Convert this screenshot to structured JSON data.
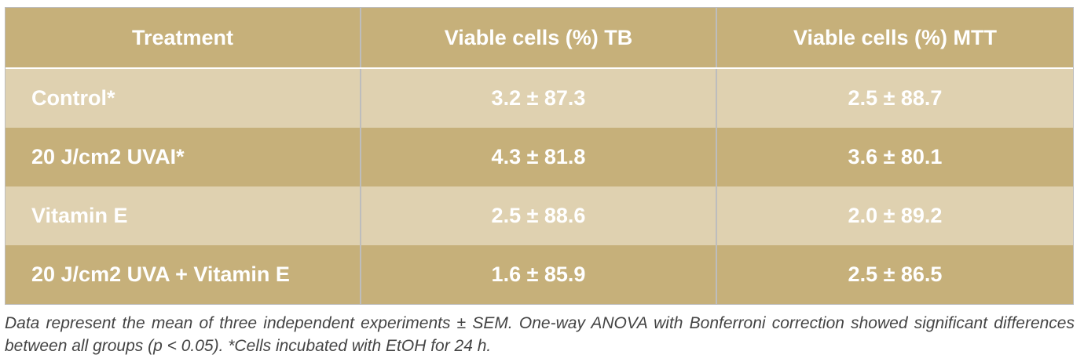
{
  "table": {
    "headers": [
      "Treatment",
      "Viable cells (%) TB",
      "Viable cells (%) MTT"
    ],
    "rows": [
      {
        "treatment": "Control*",
        "tb": "3.2 ± 87.3",
        "mtt": "2.5 ± 88.7"
      },
      {
        "treatment": "20 J/cm2 UVAI*",
        "tb": "4.3 ± 81.8",
        "mtt": "3.6 ± 80.1"
      },
      {
        "treatment": "Vitamin E",
        "tb": "2.5 ± 88.6",
        "mtt": "2.0 ± 89.2"
      },
      {
        "treatment": "20 J/cm2 UVA + Vitamin E",
        "tb": "1.6 ± 85.9",
        "mtt": "2.5 ± 86.5"
      }
    ]
  },
  "caption": "Data represent the mean of three independent experiments ± SEM. One-way ANOVA with Bonferroni correction showed significant differences between all groups (p < 0.05). *Cells incubated with EtOH for 24 h.",
  "colors": {
    "header_bg": "#c6b07a",
    "row_light": "#dfd1b0",
    "row_dark": "#c6b07a",
    "text": "#ffffff",
    "caption_text": "#444444"
  }
}
